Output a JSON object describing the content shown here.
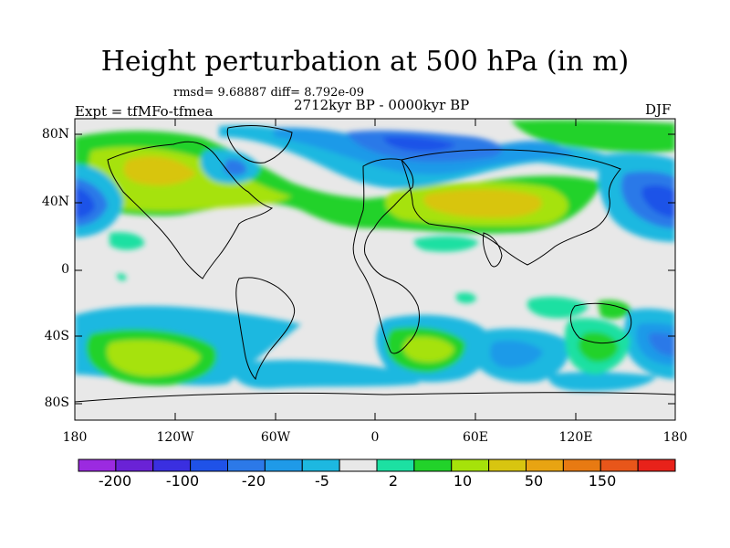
{
  "title": "Height perturbation at 500 hPa (in m)",
  "stats": "rmsd= 9.68887  diff= 8.792e-09",
  "experiment": "Expt = tfMFo-tfmea",
  "period": "2712kyr BP - 0000kyr BP",
  "season": "DJF",
  "map": {
    "y_ticks": [
      "80N",
      "40N",
      "0",
      "40S",
      "80S"
    ],
    "x_ticks": [
      "180",
      "120W",
      "60W",
      "0",
      "60E",
      "120E",
      "180"
    ],
    "background": "#e8e8e8"
  },
  "colorbar": {
    "colors": [
      "#9b2ae0",
      "#6a22d6",
      "#3a2fe0",
      "#1f52e8",
      "#2c79e8",
      "#1f9ae8",
      "#1db8e0",
      "#e8e8e8",
      "#1ce0a2",
      "#22d22a",
      "#a6e20a",
      "#d8c510",
      "#e8a412",
      "#e87a12",
      "#e8561a",
      "#e8221a"
    ],
    "labels": [
      "-200",
      "-100",
      "-20",
      "-5",
      "2",
      "10",
      "50",
      "150"
    ]
  }
}
